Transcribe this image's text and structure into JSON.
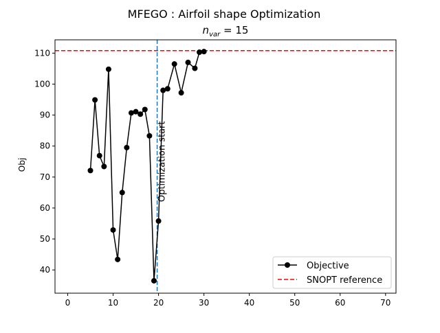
{
  "chart_data": {
    "type": "line",
    "title": "MFEGO : Airfoil shape Optimization",
    "subtitle_prefix": "n",
    "subtitle_subscript": "var",
    "subtitle_suffix": " = 15",
    "xlabel": "",
    "ylabel": "Obj",
    "xlim": [
      -2.8,
      72.3
    ],
    "ylim": [
      32.5,
      114.3
    ],
    "xticks": [
      0,
      10,
      20,
      30,
      40,
      50,
      60,
      70
    ],
    "yticks": [
      40,
      50,
      60,
      70,
      80,
      90,
      100,
      110
    ],
    "grid": false,
    "legend_position": "bottom-right",
    "series": [
      {
        "name": "Objective",
        "color": "#000000",
        "marker": "circle",
        "x": [
          5,
          6,
          7,
          8,
          9,
          10,
          11,
          12,
          13,
          14,
          15,
          16,
          17,
          18,
          19,
          20,
          21,
          22,
          23.5,
          25,
          26.5,
          28,
          29,
          30
        ],
        "y": [
          72.1,
          94.9,
          76.9,
          73.4,
          104.8,
          52.9,
          43.4,
          65.0,
          79.5,
          90.7,
          91.1,
          90.3,
          91.8,
          83.3,
          36.5,
          55.8,
          98.0,
          98.5,
          106.5,
          97.2,
          107.0,
          105.1,
          110.3,
          110.5
        ]
      }
    ],
    "reference_line": {
      "name": "SNOPT reference",
      "y": 110.8,
      "color": "#ff0000",
      "style": "dashed"
    },
    "vertical_line": {
      "x": 19.7,
      "color": "#1f77b4",
      "style": "dashed",
      "label": "Optimization start"
    }
  }
}
